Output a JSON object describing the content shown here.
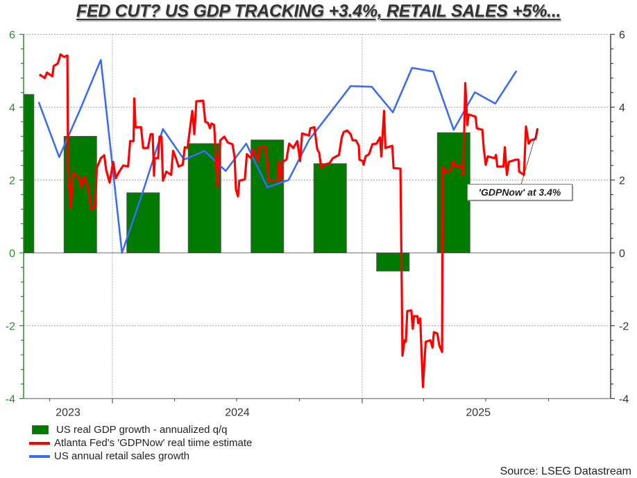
{
  "title": "FED CUT? US GDP TRACKING +3.4%, RETAIL SALES +5%...",
  "source": "Source: LSEG Datastream",
  "chart_data": {
    "type": "bar+line",
    "title": "FED CUT? US GDP TRACKING +3.4%, RETAIL SALES +5%...",
    "xlim": [
      "2023-08-24",
      "2025-12-07"
    ],
    "ylim": [
      -4,
      6
    ],
    "yticks": [
      -4,
      -2,
      0,
      2,
      4,
      6
    ],
    "ytick_labels": [
      "-4",
      "-2",
      "0",
      "2",
      "4",
      "6"
    ],
    "xtick_labels": [
      {
        "label": "2023",
        "year": 2023
      },
      {
        "label": "2024",
        "year": 2024
      },
      {
        "label": "2025",
        "year": 2025
      }
    ],
    "grid": true,
    "legend_position": "bottom-left",
    "colors": {
      "gdp": "#007a00",
      "gdpnow": "#ff0000",
      "retail": "#3a6cf4",
      "left_axis": "#2e8b2e",
      "right_axis": "#444444"
    },
    "series": [
      {
        "name": "US real GDP growth - annualized q/q",
        "kind": "bar",
        "points": [
          [
            "2023-Q3",
            4.35
          ],
          [
            "2023-Q4",
            3.2
          ],
          [
            "2024-Q1",
            1.65
          ],
          [
            "2024-Q2",
            3.0
          ],
          [
            "2024-Q3",
            3.1
          ],
          [
            "2024-Q4",
            2.45
          ],
          [
            "2025-Q1",
            -0.5
          ],
          [
            "2025-Q2",
            3.3
          ]
        ]
      },
      {
        "name": "Atlanta Fed's 'GDPNow' real tiime estimate",
        "kind": "line",
        "points": [
          [
            "2023-09-16",
            4.9
          ],
          [
            "2023-09-24",
            4.8
          ],
          [
            "2023-09-27",
            4.95
          ],
          [
            "2023-10-05",
            4.85
          ],
          [
            "2023-10-07",
            5.13
          ],
          [
            "2023-10-13",
            5.2
          ],
          [
            "2023-10-17",
            5.45
          ],
          [
            "2023-10-22",
            5.38
          ],
          [
            "2023-10-27",
            5.42
          ],
          [
            "2023-10-28",
            2.27
          ],
          [
            "2023-11-01",
            1.22
          ],
          [
            "2023-11-04",
            2.2
          ],
          [
            "2023-11-14",
            2.05
          ],
          [
            "2023-11-16",
            1.8
          ],
          [
            "2023-11-21",
            2.1
          ],
          [
            "2023-11-26",
            1.85
          ],
          [
            "2023-12-01",
            1.2
          ],
          [
            "2023-12-07",
            1.28
          ],
          [
            "2023-12-09",
            2.33
          ],
          [
            "2023-12-15",
            2.6
          ],
          [
            "2023-12-20",
            2.68
          ],
          [
            "2023-12-23",
            2.27
          ],
          [
            "2023-12-28",
            1.93
          ],
          [
            "2024-01-02",
            2.5
          ],
          [
            "2024-01-06",
            2.05
          ],
          [
            "2024-01-11",
            2.23
          ],
          [
            "2024-01-17",
            2.4
          ],
          [
            "2024-01-24",
            2.37
          ],
          [
            "2024-01-27",
            3.07
          ],
          [
            "2024-02-01",
            3.07
          ],
          [
            "2024-02-02",
            4.24
          ],
          [
            "2024-02-04",
            3.45
          ],
          [
            "2024-02-12",
            3.45
          ],
          [
            "2024-02-15",
            2.88
          ],
          [
            "2024-02-22",
            2.88
          ],
          [
            "2024-02-26",
            3.26
          ],
          [
            "2024-02-29",
            3.26
          ],
          [
            "2024-03-02",
            2.12
          ],
          [
            "2024-03-03",
            2.6
          ],
          [
            "2024-03-08",
            2.6
          ],
          [
            "2024-03-10",
            3.19
          ],
          [
            "2024-03-13",
            3.19
          ],
          [
            "2024-03-15",
            1.98
          ],
          [
            "2024-03-20",
            2.23
          ],
          [
            "2024-03-27",
            2.14
          ],
          [
            "2024-03-30",
            2.8
          ],
          [
            "2024-04-03",
            2.6
          ],
          [
            "2024-04-07",
            2.37
          ],
          [
            "2024-04-13",
            2.42
          ],
          [
            "2024-04-16",
            2.9
          ],
          [
            "2024-04-20",
            2.88
          ],
          [
            "2024-04-27",
            3.9
          ],
          [
            "2024-04-30",
            3.26
          ],
          [
            "2024-05-03",
            4.16
          ],
          [
            "2024-05-13",
            4.18
          ],
          [
            "2024-05-16",
            3.6
          ],
          [
            "2024-05-20",
            3.57
          ],
          [
            "2024-05-23",
            3.42
          ],
          [
            "2024-05-25",
            3.55
          ],
          [
            "2024-05-29",
            3.51
          ],
          [
            "2024-06-03",
            1.83
          ],
          [
            "2024-06-07",
            3.09
          ],
          [
            "2024-06-13",
            3.19
          ],
          [
            "2024-06-18",
            3.03
          ],
          [
            "2024-06-25",
            2.98
          ],
          [
            "2024-06-28",
            2.62
          ],
          [
            "2024-06-30",
            1.74
          ],
          [
            "2024-07-03",
            1.55
          ],
          [
            "2024-07-05",
            1.98
          ],
          [
            "2024-07-13",
            2.02
          ],
          [
            "2024-07-16",
            2.71
          ],
          [
            "2024-07-22",
            2.6
          ],
          [
            "2024-07-25",
            2.85
          ],
          [
            "2024-08-02",
            2.52
          ],
          [
            "2024-08-03",
            2.9
          ],
          [
            "2024-08-13",
            2.9
          ],
          [
            "2024-08-17",
            1.98
          ],
          [
            "2024-08-30",
            1.98
          ],
          [
            "2024-09-01",
            2.52
          ],
          [
            "2024-09-04",
            1.98
          ],
          [
            "2024-09-06",
            2.5
          ],
          [
            "2024-09-12",
            2.56
          ],
          [
            "2024-09-16",
            3.0
          ],
          [
            "2024-09-22",
            2.88
          ],
          [
            "2024-09-28",
            3.07
          ],
          [
            "2024-10-02",
            2.52
          ],
          [
            "2024-10-05",
            3.28
          ],
          [
            "2024-10-15",
            3.22
          ],
          [
            "2024-10-17",
            3.42
          ],
          [
            "2024-10-23",
            3.45
          ],
          [
            "2024-10-27",
            2.85
          ],
          [
            "2024-10-30",
            2.75
          ],
          [
            "2024-11-02",
            2.33
          ],
          [
            "2024-11-06",
            2.42
          ],
          [
            "2024-11-14",
            2.46
          ],
          [
            "2024-11-19",
            2.6
          ],
          [
            "2024-11-28",
            2.69
          ],
          [
            "2024-12-02",
            3.17
          ],
          [
            "2024-12-05",
            3.32
          ],
          [
            "2024-12-10",
            3.36
          ],
          [
            "2024-12-15",
            3.26
          ],
          [
            "2024-12-18",
            3.09
          ],
          [
            "2024-12-23",
            3.09
          ],
          [
            "2024-12-27",
            2.94
          ],
          [
            "2024-12-28",
            2.56
          ],
          [
            "2025-01-02",
            2.52
          ],
          [
            "2025-01-03",
            2.42
          ],
          [
            "2025-01-06",
            2.65
          ],
          [
            "2025-01-11",
            2.71
          ],
          [
            "2025-01-16",
            2.98
          ],
          [
            "2025-01-22",
            3.0
          ],
          [
            "2025-01-27",
            3.17
          ],
          [
            "2025-01-29",
            2.65
          ],
          [
            "2025-02-02",
            3.9
          ],
          [
            "2025-02-04",
            2.88
          ],
          [
            "2025-02-14",
            2.94
          ],
          [
            "2025-02-16",
            2.33
          ],
          [
            "2025-02-26",
            2.31
          ],
          [
            "2025-03-01",
            -2.82
          ],
          [
            "2025-03-04",
            -2.4
          ],
          [
            "2025-03-06",
            -2.44
          ],
          [
            "2025-03-08",
            -1.6
          ],
          [
            "2025-03-14",
            -1.58
          ],
          [
            "2025-03-16",
            -2.08
          ],
          [
            "2025-03-18",
            -1.74
          ],
          [
            "2025-03-23",
            -1.74
          ],
          [
            "2025-03-24",
            -1.93
          ],
          [
            "2025-03-27",
            -1.8
          ],
          [
            "2025-03-29",
            -2.79
          ],
          [
            "2025-03-31",
            -3.68
          ],
          [
            "2025-04-04",
            -2.44
          ],
          [
            "2025-04-11",
            -2.4
          ],
          [
            "2025-04-14",
            -2.6
          ],
          [
            "2025-04-16",
            -2.18
          ],
          [
            "2025-04-21",
            -2.21
          ],
          [
            "2025-04-24",
            -2.54
          ],
          [
            "2025-04-28",
            -2.72
          ],
          [
            "2025-04-29",
            2.37
          ],
          [
            "2025-05-03",
            2.21
          ],
          [
            "2025-05-11",
            2.27
          ],
          [
            "2025-05-14",
            2.52
          ],
          [
            "2025-05-18",
            2.37
          ],
          [
            "2025-05-27",
            2.4
          ],
          [
            "2025-05-29",
            2.14
          ],
          [
            "2025-06-01",
            4.66
          ],
          [
            "2025-06-04",
            3.51
          ],
          [
            "2025-06-06",
            3.8
          ],
          [
            "2025-06-16",
            3.74
          ],
          [
            "2025-06-18",
            3.42
          ],
          [
            "2025-06-26",
            3.38
          ],
          [
            "2025-06-28",
            2.88
          ],
          [
            "2025-07-01",
            2.42
          ],
          [
            "2025-07-04",
            2.65
          ],
          [
            "2025-07-14",
            2.6
          ],
          [
            "2025-07-16",
            2.69
          ],
          [
            "2025-07-18",
            2.37
          ],
          [
            "2025-07-27",
            2.37
          ],
          [
            "2025-07-29",
            2.9
          ],
          [
            "2025-08-01",
            2.14
          ],
          [
            "2025-08-04",
            2.5
          ],
          [
            "2025-08-14",
            2.56
          ],
          [
            "2025-08-18",
            2.56
          ],
          [
            "2025-08-19",
            2.23
          ],
          [
            "2025-08-26",
            2.14
          ],
          [
            "2025-08-29",
            3.47
          ],
          [
            "2025-09-02",
            3.0
          ],
          [
            "2025-09-05",
            3.09
          ],
          [
            "2025-09-12",
            3.13
          ],
          [
            "2025-09-15",
            3.42
          ]
        ]
      },
      {
        "name": "US annual retail sales growth",
        "kind": "line",
        "points": [
          [
            "2023-09",
            4.14
          ],
          [
            "2023-10",
            2.63
          ],
          [
            "2023-11",
            3.95
          ],
          [
            "2023-12",
            5.3
          ],
          [
            "2024-01",
            0.0
          ],
          [
            "2024-02",
            1.7
          ],
          [
            "2024-03",
            3.4
          ],
          [
            "2024-04",
            2.56
          ],
          [
            "2024-05",
            2.8
          ],
          [
            "2024-06",
            2.25
          ],
          [
            "2024-07",
            3.0
          ],
          [
            "2024-08",
            1.8
          ],
          [
            "2024-09",
            2.0
          ],
          [
            "2024-10",
            3.1
          ],
          [
            "2024-11",
            3.85
          ],
          [
            "2024-12",
            4.58
          ],
          [
            "2025-01",
            4.56
          ],
          [
            "2025-02",
            3.86
          ],
          [
            "2025-03",
            5.08
          ],
          [
            "2025-04",
            4.98
          ],
          [
            "2025-05",
            3.38
          ],
          [
            "2025-06",
            4.41
          ],
          [
            "2025-07",
            4.1
          ],
          [
            "2025-08",
            5.0
          ]
        ]
      }
    ],
    "annotations": [
      {
        "text": "'GDPNow' at 3.4%",
        "date": "2025-09-15",
        "value": 3.42
      }
    ]
  }
}
